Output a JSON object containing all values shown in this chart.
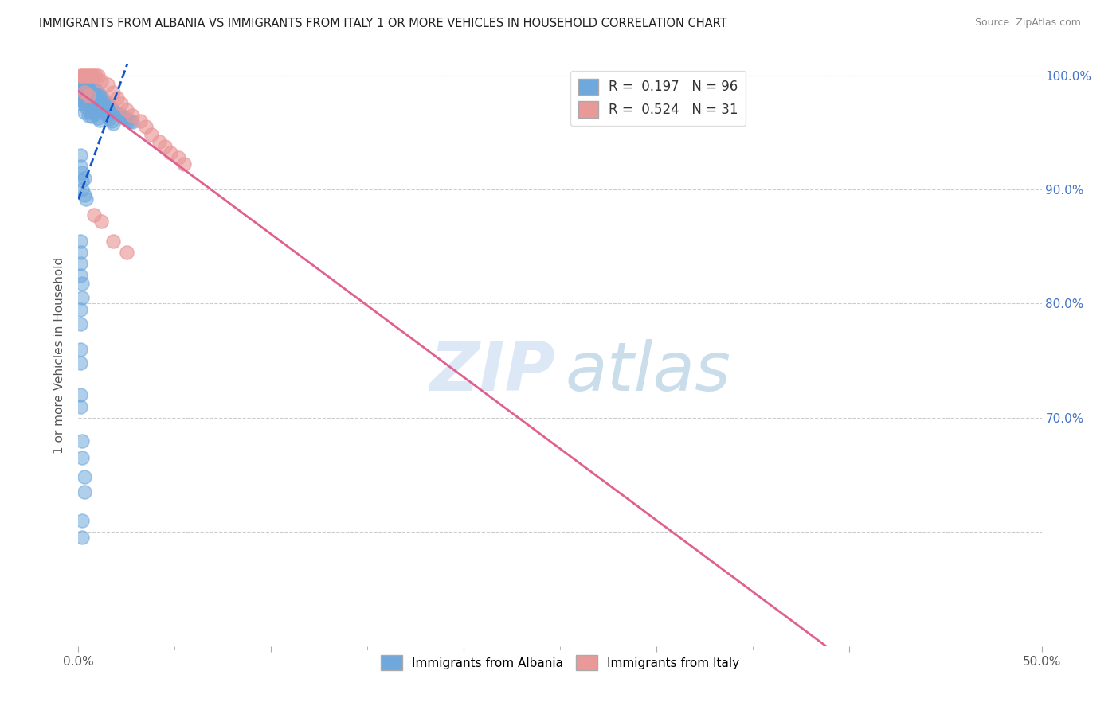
{
  "title": "IMMIGRANTS FROM ALBANIA VS IMMIGRANTS FROM ITALY 1 OR MORE VEHICLES IN HOUSEHOLD CORRELATION CHART",
  "source": "Source: ZipAtlas.com",
  "ylabel": "1 or more Vehicles in Household",
  "xlim": [
    0.0,
    0.5
  ],
  "ylim": [
    0.5,
    1.01
  ],
  "albania_color": "#6fa8dc",
  "albania_edge": "#6fa8dc",
  "italy_color": "#ea9999",
  "italy_edge": "#ea9999",
  "trendline_albania_color": "#1155cc",
  "trendline_italy_color": "#e06090",
  "R_albania": 0.197,
  "N_albania": 96,
  "R_italy": 0.524,
  "N_italy": 31,
  "legend_label_albania": "Immigrants from Albania",
  "legend_label_italy": "Immigrants from Italy",
  "watermark_zip": "ZIP",
  "watermark_atlas": "atlas",
  "right_ytick_positions": [
    1.0,
    0.9,
    0.8,
    0.7
  ],
  "right_ytick_labels": [
    "100.0%",
    "90.0%",
    "80.0%",
    "70.0%"
  ],
  "grid_color": "#cccccc",
  "title_color": "#222222",
  "source_color": "#888888",
  "right_tick_color": "#4472c4",
  "albania_x": [
    0.001,
    0.001,
    0.001,
    0.001,
    0.001,
    0.001,
    0.001,
    0.002,
    0.002,
    0.002,
    0.002,
    0.002,
    0.003,
    0.003,
    0.003,
    0.003,
    0.003,
    0.004,
    0.004,
    0.004,
    0.004,
    0.005,
    0.005,
    0.005,
    0.005,
    0.005,
    0.006,
    0.006,
    0.006,
    0.006,
    0.007,
    0.007,
    0.007,
    0.007,
    0.008,
    0.008,
    0.008,
    0.009,
    0.009,
    0.009,
    0.01,
    0.01,
    0.01,
    0.011,
    0.011,
    0.011,
    0.012,
    0.012,
    0.013,
    0.013,
    0.014,
    0.014,
    0.015,
    0.015,
    0.016,
    0.016,
    0.017,
    0.017,
    0.018,
    0.018,
    0.019,
    0.02,
    0.021,
    0.022,
    0.023,
    0.024,
    0.025,
    0.026,
    0.027,
    0.028,
    0.001,
    0.001,
    0.002,
    0.002,
    0.002,
    0.003,
    0.003,
    0.004,
    0.001,
    0.001,
    0.001,
    0.001,
    0.002,
    0.002,
    0.001,
    0.001,
    0.001,
    0.001,
    0.001,
    0.001,
    0.002,
    0.002,
    0.003,
    0.003,
    0.002,
    0.002
  ],
  "albania_y": [
    0.998,
    0.995,
    0.992,
    0.988,
    0.985,
    0.98,
    0.975,
    0.998,
    0.993,
    0.988,
    0.983,
    0.978,
    0.997,
    0.992,
    0.987,
    0.975,
    0.968,
    0.995,
    0.989,
    0.982,
    0.972,
    0.994,
    0.988,
    0.984,
    0.976,
    0.965,
    0.993,
    0.986,
    0.978,
    0.968,
    0.991,
    0.984,
    0.975,
    0.964,
    0.989,
    0.981,
    0.97,
    0.987,
    0.978,
    0.966,
    0.985,
    0.976,
    0.963,
    0.983,
    0.974,
    0.961,
    0.981,
    0.972,
    0.979,
    0.969,
    0.977,
    0.967,
    0.975,
    0.965,
    0.973,
    0.962,
    0.971,
    0.96,
    0.969,
    0.958,
    0.968,
    0.967,
    0.966,
    0.965,
    0.964,
    0.963,
    0.962,
    0.961,
    0.96,
    0.959,
    0.93,
    0.92,
    0.915,
    0.908,
    0.9,
    0.91,
    0.895,
    0.892,
    0.855,
    0.845,
    0.835,
    0.825,
    0.818,
    0.805,
    0.795,
    0.782,
    0.76,
    0.748,
    0.72,
    0.71,
    0.68,
    0.665,
    0.648,
    0.635,
    0.61,
    0.595
  ],
  "italy_x": [
    0.001,
    0.002,
    0.003,
    0.004,
    0.005,
    0.006,
    0.007,
    0.008,
    0.009,
    0.01,
    0.012,
    0.015,
    0.018,
    0.02,
    0.022,
    0.025,
    0.028,
    0.032,
    0.035,
    0.038,
    0.042,
    0.045,
    0.048,
    0.052,
    0.055,
    0.003,
    0.005,
    0.008,
    0.012,
    0.018,
    0.025
  ],
  "italy_y": [
    1.0,
    1.0,
    1.0,
    1.0,
    1.0,
    1.0,
    1.0,
    1.0,
    1.0,
    1.0,
    0.995,
    0.992,
    0.985,
    0.98,
    0.975,
    0.97,
    0.965,
    0.96,
    0.955,
    0.948,
    0.942,
    0.938,
    0.932,
    0.928,
    0.922,
    0.985,
    0.982,
    0.878,
    0.872,
    0.855,
    0.845
  ]
}
